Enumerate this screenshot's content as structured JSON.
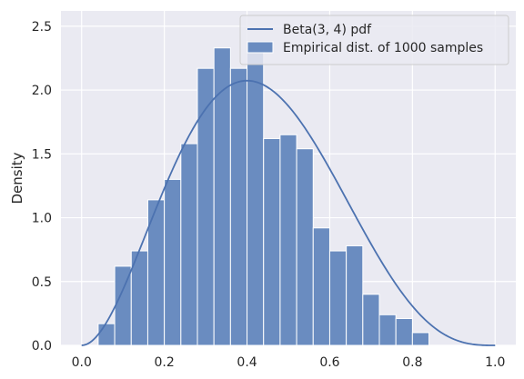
{
  "chart_data": {
    "type": "bar",
    "xlabel": "",
    "ylabel": "Density",
    "xlim": [
      -0.05,
      1.05
    ],
    "ylim": [
      0,
      2.62
    ],
    "xticks": [
      "0.0",
      "0.2",
      "0.4",
      "0.6",
      "0.8",
      "1.0"
    ],
    "xtick_values": [
      0.0,
      0.2,
      0.4,
      0.6,
      0.8,
      1.0
    ],
    "yticks": [
      "0.0",
      "0.5",
      "1.0",
      "1.5",
      "2.0",
      "2.5"
    ],
    "ytick_values": [
      0.0,
      0.5,
      1.0,
      1.5,
      2.0,
      2.5
    ],
    "grid": true,
    "legend_position": "top-right",
    "series": [
      {
        "name": "Beta(3, 4) pdf",
        "kind": "line",
        "color": "#4c72b0",
        "distribution": "Beta(3, 4)",
        "x_range": [
          0.0,
          1.0
        ]
      },
      {
        "name": "Empirical dist. of 1000 samples",
        "kind": "histogram",
        "color": "#6a8cc0",
        "bin_edges": [
          0.04,
          0.08,
          0.12,
          0.16,
          0.2,
          0.24,
          0.28,
          0.32,
          0.36,
          0.4,
          0.44,
          0.48,
          0.52,
          0.56,
          0.6,
          0.64,
          0.68,
          0.72,
          0.76,
          0.8,
          0.84,
          0.88,
          0.92
        ],
        "values": [
          0.17,
          0.62,
          0.74,
          1.14,
          1.3,
          1.58,
          2.17,
          2.33,
          2.17,
          2.32,
          1.62,
          1.65,
          1.54,
          0.92,
          0.74,
          0.78,
          0.4,
          0.24,
          0.21,
          0.1,
          0.0,
          0.0
        ]
      }
    ]
  }
}
